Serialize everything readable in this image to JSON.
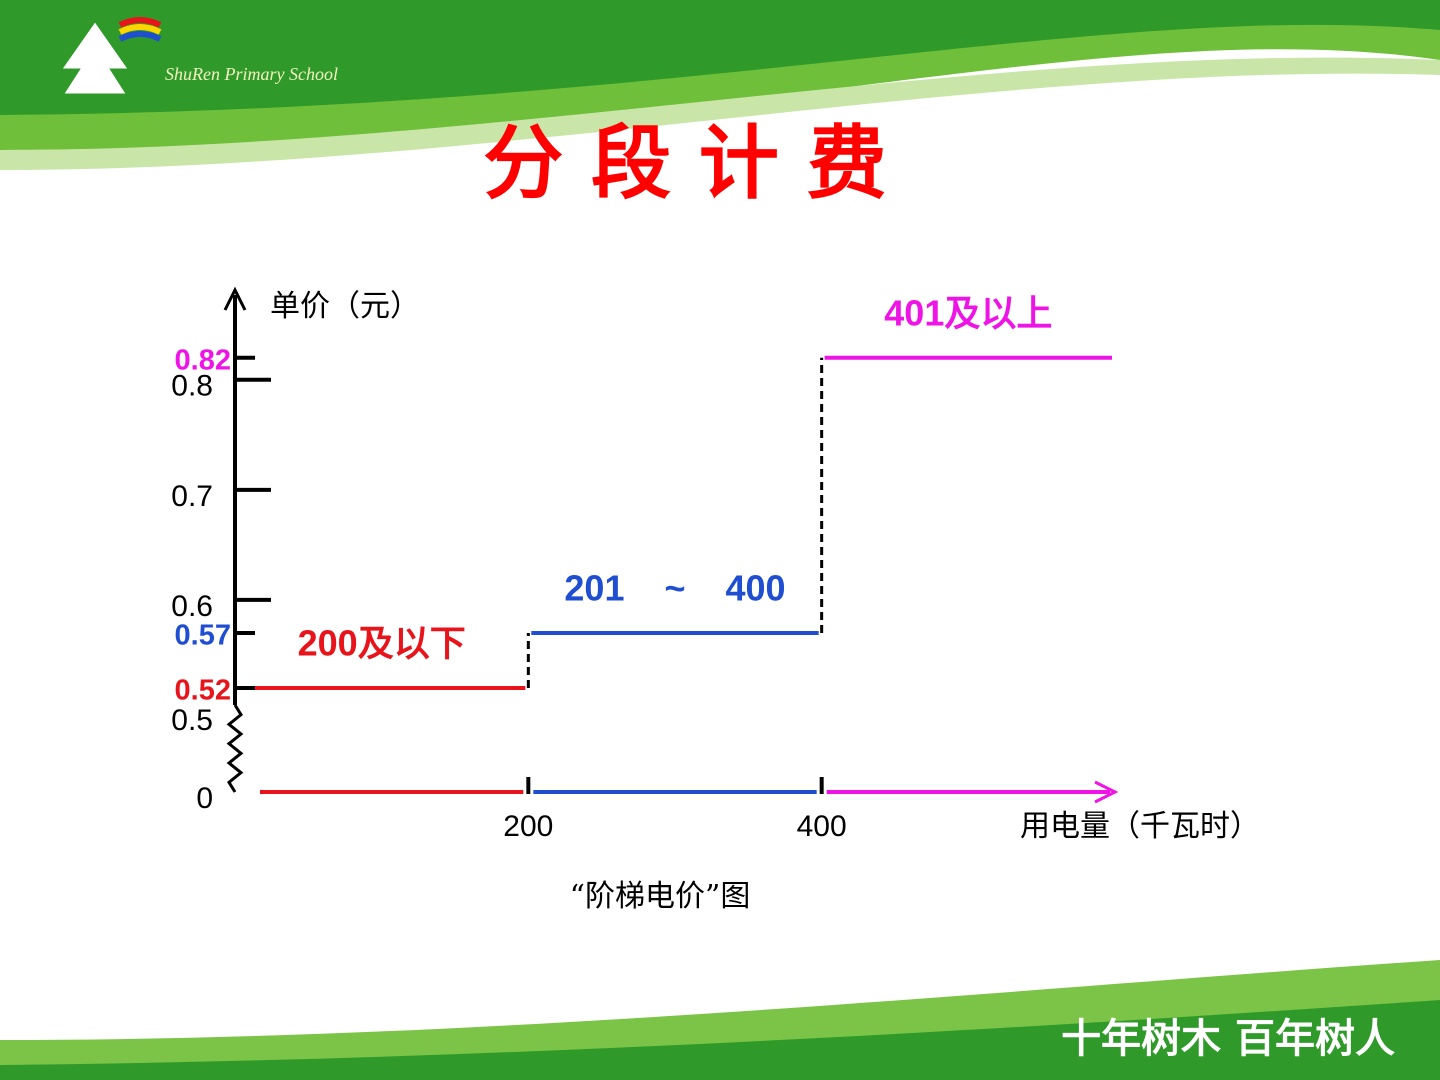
{
  "header": {
    "school": "ShuRen Primary School"
  },
  "chart_data": {
    "type": "step",
    "title": "分 段 计 费",
    "y_label": "单价（元）",
    "x_label": "用电量（千瓦时）",
    "caption": "“阶梯电价”图",
    "xlim": [
      0,
      600
    ],
    "xticks": [
      200,
      400
    ],
    "ylim": [
      0,
      0.877
    ],
    "ybreak": [
      0,
      0.5
    ],
    "yticks": [
      0,
      0.5,
      0.6,
      0.7,
      0.8
    ],
    "series": [
      {
        "name": "200及以下",
        "color": "#e8141b",
        "x_range": [
          0,
          200
        ],
        "value": 0.52
      },
      {
        "name": "201    ~    400",
        "color": "#1f4fd0",
        "x_range": [
          200,
          400
        ],
        "value": 0.57
      },
      {
        "name": "401及以上",
        "color": "#ee14e6",
        "x_range": [
          400,
          600
        ],
        "value": 0.82
      }
    ]
  },
  "footer": {
    "motto": "十年树木 百年树人"
  }
}
